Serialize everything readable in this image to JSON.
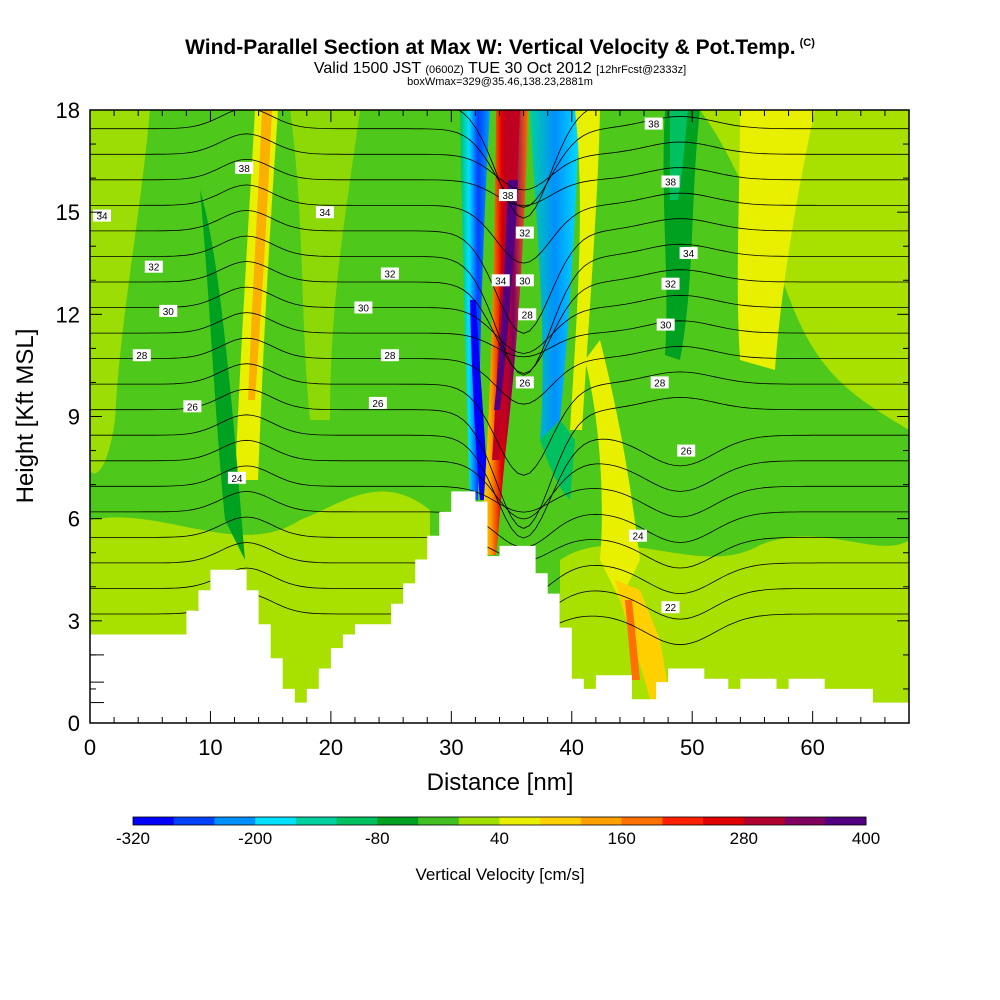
{
  "header": {
    "title": "Wind-Parallel Section at Max W: Vertical Velocity & Pot.Temp.",
    "copyright": "(C)",
    "valid_main1": "Valid 1500 JST",
    "valid_small1": "(0600Z)",
    "valid_main2": "TUE 30 Oct 2012",
    "valid_small2": "[12hrFcst@2333z]",
    "boxline": "boxWmax=329@35.46,138.23,2881m"
  },
  "chart_data": {
    "type": "contour-cross-section",
    "xlabel": "Distance [nm]",
    "ylabel": "Height [Kft MSL]",
    "xlim": [
      0,
      68
    ],
    "ylim": [
      0,
      18
    ],
    "x_ticks": [
      0,
      10,
      20,
      30,
      40,
      50,
      60
    ],
    "y_ticks": [
      0,
      3,
      6,
      9,
      12,
      15,
      18
    ],
    "colorbar": {
      "label": "Vertical Velocity [cm/s]",
      "tick_labels": [
        "-320",
        "-200",
        "-80",
        "40",
        "160",
        "280",
        "400"
      ],
      "colors": [
        "#0000ff",
        "#0040ff",
        "#0090ff",
        "#00e0ff",
        "#00d0a0",
        "#00c060",
        "#00a020",
        "#40c020",
        "#a0e000",
        "#e8f000",
        "#ffd000",
        "#ffa000",
        "#ff7000",
        "#ff2000",
        "#e00000",
        "#b00030",
        "#800060",
        "#500080"
      ]
    },
    "terrain_kft": [
      [
        0,
        2.6
      ],
      [
        8,
        2.6
      ],
      [
        8,
        3.3
      ],
      [
        9,
        3.3
      ],
      [
        9,
        3.9
      ],
      [
        10,
        3.9
      ],
      [
        10,
        4.5
      ],
      [
        13,
        4.5
      ],
      [
        13,
        3.9
      ],
      [
        14,
        3.9
      ],
      [
        14,
        2.9
      ],
      [
        15,
        2.9
      ],
      [
        15,
        1.9
      ],
      [
        16,
        1.9
      ],
      [
        16,
        1.0
      ],
      [
        17,
        1.0
      ],
      [
        17,
        0.6
      ],
      [
        18,
        0.6
      ],
      [
        18,
        1.0
      ],
      [
        19,
        1.0
      ],
      [
        19,
        1.6
      ],
      [
        20,
        1.6
      ],
      [
        20,
        2.2
      ],
      [
        21,
        2.2
      ],
      [
        21,
        2.6
      ],
      [
        22,
        2.6
      ],
      [
        22,
        2.9
      ],
      [
        25,
        2.9
      ],
      [
        25,
        3.5
      ],
      [
        26,
        3.5
      ],
      [
        26,
        4.1
      ],
      [
        27,
        4.1
      ],
      [
        27,
        4.8
      ],
      [
        28,
        4.8
      ],
      [
        28,
        5.5
      ],
      [
        29,
        5.5
      ],
      [
        29,
        6.2
      ],
      [
        30,
        6.2
      ],
      [
        30,
        6.8
      ],
      [
        32,
        6.8
      ],
      [
        32,
        6.5
      ],
      [
        33,
        6.5
      ],
      [
        33,
        4.9
      ],
      [
        34,
        4.9
      ],
      [
        34,
        5.2
      ],
      [
        37,
        5.2
      ],
      [
        37,
        4.4
      ],
      [
        38,
        4.4
      ],
      [
        38,
        3.8
      ],
      [
        39,
        3.8
      ],
      [
        39,
        2.8
      ],
      [
        40,
        2.8
      ],
      [
        40,
        1.3
      ],
      [
        41,
        1.3
      ],
      [
        41,
        1.0
      ],
      [
        42,
        1.0
      ],
      [
        42,
        1.4
      ],
      [
        45,
        1.4
      ],
      [
        45,
        0.7
      ],
      [
        47,
        0.7
      ],
      [
        47,
        1.2
      ],
      [
        48,
        1.2
      ],
      [
        48,
        1.6
      ],
      [
        51,
        1.6
      ],
      [
        51,
        1.3
      ],
      [
        53,
        1.3
      ],
      [
        53,
        1.0
      ],
      [
        54,
        1.0
      ],
      [
        54,
        1.3
      ],
      [
        57,
        1.3
      ],
      [
        57,
        1.0
      ],
      [
        58,
        1.0
      ],
      [
        58,
        1.3
      ],
      [
        61,
        1.3
      ],
      [
        61,
        1.0
      ],
      [
        65,
        1.0
      ],
      [
        65,
        0.6
      ],
      [
        68,
        0.6
      ]
    ],
    "isentropes": [
      {
        "value": "38",
        "label_x": 46.8,
        "label_y": 17.6
      },
      {
        "value": "38",
        "label_x": 12.8,
        "label_y": 16.3
      },
      {
        "value": "38",
        "label_x": 34.7,
        "label_y": 15.5
      },
      {
        "value": "38",
        "label_x": 48.2,
        "label_y": 15.9
      },
      {
        "value": "34",
        "label_x": 1.0,
        "label_y": 14.9
      },
      {
        "value": "34",
        "label_x": 19.5,
        "label_y": 15.0
      },
      {
        "value": "32",
        "label_x": 36.1,
        "label_y": 14.4
      },
      {
        "value": "34",
        "label_x": 49.7,
        "label_y": 13.8
      },
      {
        "value": "32",
        "label_x": 5.3,
        "label_y": 13.4
      },
      {
        "value": "32",
        "label_x": 24.9,
        "label_y": 13.2
      },
      {
        "value": "34",
        "label_x": 34.1,
        "label_y": 13.0
      },
      {
        "value": "30",
        "label_x": 36.1,
        "label_y": 13.0
      },
      {
        "value": "32",
        "label_x": 48.2,
        "label_y": 12.9
      },
      {
        "value": "30",
        "label_x": 6.5,
        "label_y": 12.1
      },
      {
        "value": "30",
        "label_x": 22.7,
        "label_y": 12.2
      },
      {
        "value": "28",
        "label_x": 36.3,
        "label_y": 12.0
      },
      {
        "value": "30",
        "label_x": 47.8,
        "label_y": 11.7
      },
      {
        "value": "28",
        "label_x": 4.3,
        "label_y": 10.8
      },
      {
        "value": "28",
        "label_x": 24.9,
        "label_y": 10.8
      },
      {
        "value": "26",
        "label_x": 36.1,
        "label_y": 10.0
      },
      {
        "value": "28",
        "label_x": 47.3,
        "label_y": 10.0
      },
      {
        "value": "26",
        "label_x": 8.5,
        "label_y": 9.3
      },
      {
        "value": "26",
        "label_x": 23.9,
        "label_y": 9.4
      },
      {
        "value": "26",
        "label_x": 49.5,
        "label_y": 8.0
      },
      {
        "value": "24",
        "label_x": 12.2,
        "label_y": 7.2
      },
      {
        "value": "24",
        "label_x": 45.5,
        "label_y": 5.5
      },
      {
        "value": "22",
        "label_x": 48.2,
        "label_y": 3.4
      }
    ]
  }
}
